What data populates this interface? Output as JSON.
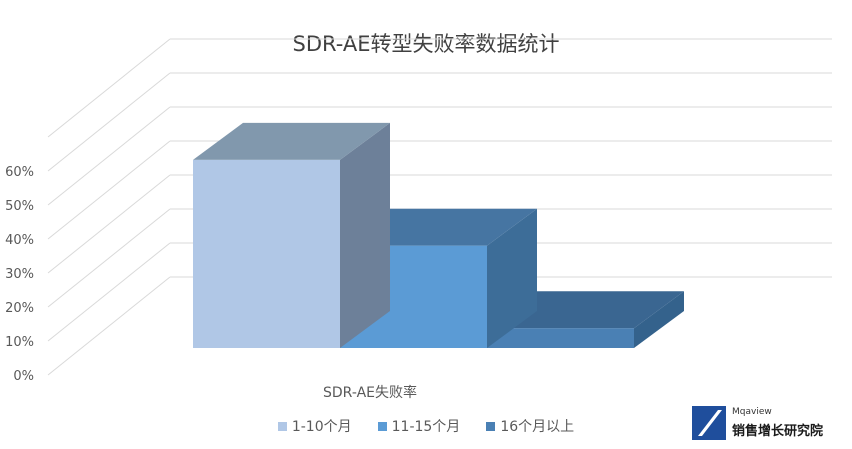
{
  "chart_data": {
    "type": "bar",
    "title": "SDR-AE转型失败率数据统计",
    "categories": [
      "SDR-AE失败率"
    ],
    "series": [
      {
        "name": "1-10个月",
        "values": [
          57
        ],
        "color": "#b0c7e6"
      },
      {
        "name": "11-15个月",
        "values": [
          31
        ],
        "color": "#5b9bd5"
      },
      {
        "name": "16个月以上",
        "values": [
          6
        ],
        "color": "#4a80b4"
      }
    ],
    "y_ticks": [
      "0%",
      "10%",
      "20%",
      "30%",
      "40%",
      "50%",
      "60%"
    ],
    "ylim": [
      0,
      60
    ],
    "grid": true,
    "legend_position": "bottom",
    "style": "3d-column"
  },
  "logo": {
    "small_text": "Mqaview",
    "text": "销售增长研究院"
  }
}
